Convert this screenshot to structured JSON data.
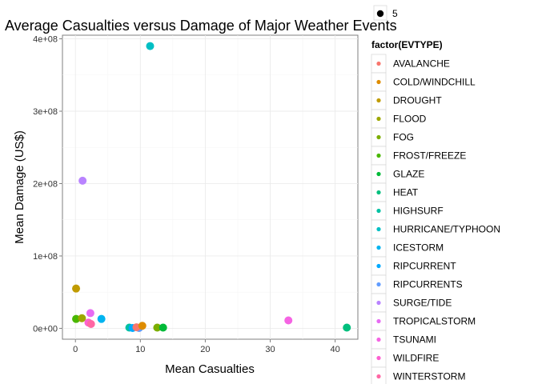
{
  "chart_data": {
    "type": "scatter",
    "title": "Average Casualties versus Damage of Major Weather Events",
    "xlabel": "Mean Casualties",
    "ylabel": "Mean Damage (US$)",
    "xlim": [
      -2,
      43.5
    ],
    "ylim": [
      -15000000,
      405000000
    ],
    "grid": true,
    "x_ticks": [
      0,
      10,
      20,
      30,
      40
    ],
    "x_tick_labels": [
      "0",
      "10",
      "20",
      "30",
      "40"
    ],
    "y_ticks": [
      0,
      100000000,
      200000000,
      300000000,
      400000000
    ],
    "y_tick_labels": [
      "0e+00",
      "1e+08",
      "2e+08",
      "3e+08",
      "4e+08"
    ],
    "size_legend": {
      "label": "5"
    },
    "color_legend": {
      "title": "factor(EVTYPE)",
      "placement": "right",
      "entries": [
        {
          "name": "AVALANCHE",
          "color": "#F8766D"
        },
        {
          "name": "COLD/WINDCHILL",
          "color": "#DE8C00"
        },
        {
          "name": "DROUGHT",
          "color": "#C09B00"
        },
        {
          "name": "FLOOD",
          "color": "#9DA700"
        },
        {
          "name": "FOG",
          "color": "#7CAE00"
        },
        {
          "name": "FROST/FREEZE",
          "color": "#49B700"
        },
        {
          "name": "GLAZE",
          "color": "#00BA38"
        },
        {
          "name": "HEAT",
          "color": "#00BF7D"
        },
        {
          "name": "HIGHSURF",
          "color": "#00C1A3"
        },
        {
          "name": "HURRICANE/TYPHOON",
          "color": "#00BFC4"
        },
        {
          "name": "ICESTORM",
          "color": "#00B4F0"
        },
        {
          "name": "RIPCURRENT",
          "color": "#00A9FF"
        },
        {
          "name": "RIPCURRENTS",
          "color": "#619CFF"
        },
        {
          "name": "SURGE/TIDE",
          "color": "#B983FF"
        },
        {
          "name": "TROPICALSTORM",
          "color": "#E76BF3"
        },
        {
          "name": "TSUNAMI",
          "color": "#F564E3"
        },
        {
          "name": "WILDFIRE",
          "color": "#FD61D1"
        },
        {
          "name": "WINTERSTORM",
          "color": "#FF67A4"
        }
      ]
    },
    "points": [
      {
        "event": "DROUGHT",
        "x": 0.1,
        "y": 55000000,
        "color": "#C09B00"
      },
      {
        "event": "FROST/FREEZE",
        "x": 0.1,
        "y": 13000000,
        "color": "#49B700"
      },
      {
        "event": "FLOOD",
        "x": 1.0,
        "y": 14000000,
        "color": "#9DA700"
      },
      {
        "event": "SURGE/TIDE",
        "x": 1.1,
        "y": 204000000,
        "color": "#B983FF"
      },
      {
        "event": "TROPICALSTORM",
        "x": 2.3,
        "y": 21000000,
        "color": "#E76BF3"
      },
      {
        "event": "WILDFIRE",
        "x": 2.0,
        "y": 8000000,
        "color": "#FD61D1"
      },
      {
        "event": "WINTERSTORM",
        "x": 2.4,
        "y": 6000000,
        "color": "#FF67A4"
      },
      {
        "event": "ICESTORM",
        "x": 4.0,
        "y": 13000000,
        "color": "#00B4F0"
      },
      {
        "event": "HIGHSURF",
        "x": 8.3,
        "y": 1000000,
        "color": "#00C1A3"
      },
      {
        "event": "RIPCURRENT",
        "x": 8.8,
        "y": 500000,
        "color": "#00A9FF"
      },
      {
        "event": "RIPCURRENTS",
        "x": 9.8,
        "y": 500000,
        "color": "#619CFF"
      },
      {
        "event": "AVALANCHE",
        "x": 9.4,
        "y": 1500000,
        "color": "#F8766D"
      },
      {
        "event": "COLD/WINDCHILL",
        "x": 10.3,
        "y": 3500000,
        "color": "#DE8C00"
      },
      {
        "event": "HURRICANE/TYPHOON",
        "x": 11.5,
        "y": 390000000,
        "color": "#00BFC4"
      },
      {
        "event": "FOG",
        "x": 12.6,
        "y": 1000000,
        "color": "#7CAE00"
      },
      {
        "event": "GLAZE",
        "x": 13.5,
        "y": 1000000,
        "color": "#00BA38"
      },
      {
        "event": "TSUNAMI",
        "x": 32.8,
        "y": 11000000,
        "color": "#F564E3"
      },
      {
        "event": "HEAT",
        "x": 41.8,
        "y": 1000000,
        "color": "#00BF7D"
      }
    ]
  }
}
